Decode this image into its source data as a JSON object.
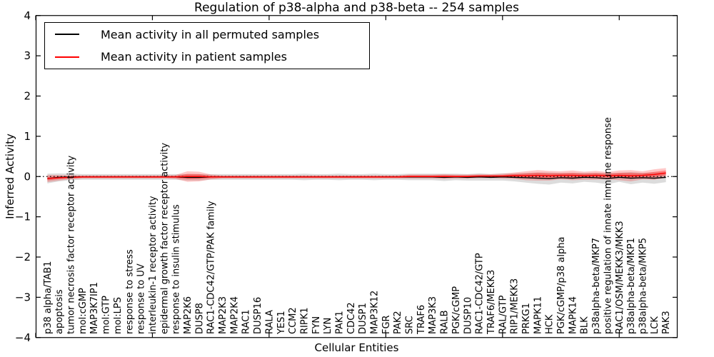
{
  "figure": {
    "background": "#ffffff",
    "border_color": "#000000"
  },
  "chart_data": {
    "type": "line",
    "title": "Regulation of p38-alpha and p38-beta -- 254 samples",
    "xlabel": "Cellular Entities",
    "ylabel": "Inferred Activity",
    "ylim": [
      -4,
      4
    ],
    "xlim": [
      0,
      55
    ],
    "grid": false,
    "zero_line": {
      "value": 0,
      "style": "dotted",
      "color": "#000000"
    },
    "yticks": [
      4,
      3,
      2,
      1,
      0,
      -1,
      -2,
      -3,
      -4
    ],
    "ytick_labels": [
      "4",
      "3",
      "2",
      "1",
      "0",
      "−1",
      "−2",
      "−3",
      "−4"
    ],
    "xticks": [
      0,
      10,
      20,
      30,
      40,
      50
    ],
    "legend": {
      "position": "upper left",
      "entries": [
        {
          "label": "Mean activity in all permuted samples",
          "color": "#000000"
        },
        {
          "label": "Mean activity in patient samples",
          "color": "#ff0000"
        }
      ]
    },
    "categories": [
      "p38 alpha/TAB1",
      "apoptosis",
      "tumor necrosis factor receptor activity",
      "mol:cGMP",
      "MAP3K7IP1",
      "mol:GTP",
      "mol:LPS",
      "response to stress",
      "response to UV",
      "interleukin-1 receptor activity",
      "epidermal growth factor receptor activity",
      "response to insulin stimulus",
      "MAP2K6",
      "DUSP8",
      "RAC1-CDC42/GTP/PAK family",
      "MAP2K3",
      "MAP2K4",
      "RAC1",
      "DUSP16",
      "RALA",
      "YES1",
      "CCM2",
      "RIPK1",
      "FYN",
      "LYN",
      "PAK1",
      "CDC42",
      "DUSP1",
      "MAP3K12",
      "FGR",
      "PAK2",
      "SRC",
      "TRAF6",
      "MAP3K3",
      "RALB",
      "PGK/cGMP",
      "DUSP10",
      "RAC1-CDC42/GTP",
      "TRAF6/MEKK3",
      "RAL/GTP",
      "RIP1/MEKK3",
      "PRKG1",
      "MAPK11",
      "HCK",
      "PGK/cGMP/p38 alpha",
      "MAPK14",
      "BLK",
      "p38alpha-beta/MKP7",
      "positive regulation of innate immune response",
      "RAC1/OSM/MEKK3/MKK3",
      "p38alpha-beta/MKP1",
      "p38alpha-beta/MKP5",
      "LCK",
      "PAK3"
    ],
    "series": [
      {
        "name": "Mean activity in all permuted samples",
        "color": "#000000",
        "band_color": "rgba(130,130,130,0.28)",
        "values": [
          -0.05,
          -0.02,
          -0.01,
          -0.01,
          -0.01,
          -0.01,
          -0.01,
          -0.01,
          -0.01,
          -0.01,
          -0.01,
          -0.01,
          -0.02,
          -0.02,
          -0.01,
          -0.01,
          -0.01,
          -0.01,
          -0.01,
          -0.01,
          -0.01,
          -0.01,
          -0.01,
          -0.01,
          -0.01,
          -0.01,
          -0.01,
          -0.01,
          -0.01,
          -0.01,
          -0.01,
          -0.01,
          -0.01,
          -0.01,
          -0.02,
          -0.01,
          -0.02,
          -0.01,
          -0.02,
          -0.01,
          -0.02,
          -0.03,
          -0.04,
          -0.05,
          -0.03,
          -0.04,
          -0.02,
          -0.03,
          -0.05,
          -0.02,
          -0.04,
          -0.03,
          -0.04,
          -0.02
        ],
        "band": [
          0.12,
          0.1,
          0.08,
          0.07,
          0.07,
          0.07,
          0.07,
          0.07,
          0.07,
          0.07,
          0.07,
          0.07,
          0.08,
          0.08,
          0.07,
          0.07,
          0.07,
          0.07,
          0.07,
          0.07,
          0.07,
          0.07,
          0.08,
          0.07,
          0.07,
          0.08,
          0.07,
          0.07,
          0.08,
          0.07,
          0.07,
          0.08,
          0.08,
          0.08,
          0.09,
          0.08,
          0.08,
          0.09,
          0.08,
          0.09,
          0.1,
          0.12,
          0.14,
          0.15,
          0.12,
          0.13,
          0.11,
          0.12,
          0.14,
          0.11,
          0.15,
          0.12,
          0.14,
          0.12
        ]
      },
      {
        "name": "Mean activity in patient samples",
        "color": "#ff0000",
        "band_color": "rgba(255,0,0,0.22)",
        "band_inner_color": "rgba(255,0,0,0.35)",
        "values": [
          -0.05,
          -0.03,
          -0.02,
          -0.01,
          -0.01,
          -0.01,
          -0.01,
          -0.01,
          -0.01,
          -0.01,
          -0.01,
          -0.01,
          0.0,
          0.0,
          -0.01,
          -0.01,
          -0.01,
          -0.01,
          -0.01,
          -0.01,
          -0.01,
          -0.01,
          -0.01,
          -0.01,
          -0.01,
          -0.01,
          -0.01,
          -0.01,
          -0.01,
          -0.01,
          -0.01,
          0.0,
          0.0,
          0.0,
          0.0,
          0.0,
          0.0,
          0.01,
          0.01,
          0.01,
          0.02,
          0.02,
          0.03,
          0.02,
          0.03,
          0.03,
          0.02,
          0.03,
          0.02,
          0.03,
          0.02,
          0.03,
          0.05,
          0.09
        ],
        "band": [
          0.09,
          0.07,
          0.05,
          0.04,
          0.04,
          0.04,
          0.04,
          0.04,
          0.04,
          0.04,
          0.04,
          0.05,
          0.13,
          0.12,
          0.06,
          0.04,
          0.04,
          0.04,
          0.04,
          0.04,
          0.04,
          0.04,
          0.04,
          0.04,
          0.04,
          0.04,
          0.04,
          0.04,
          0.04,
          0.04,
          0.04,
          0.05,
          0.05,
          0.05,
          0.06,
          0.05,
          0.05,
          0.05,
          0.05,
          0.06,
          0.08,
          0.11,
          0.13,
          0.12,
          0.1,
          0.12,
          0.1,
          0.11,
          0.09,
          0.12,
          0.14,
          0.1,
          0.13,
          0.12
        ]
      }
    ]
  }
}
